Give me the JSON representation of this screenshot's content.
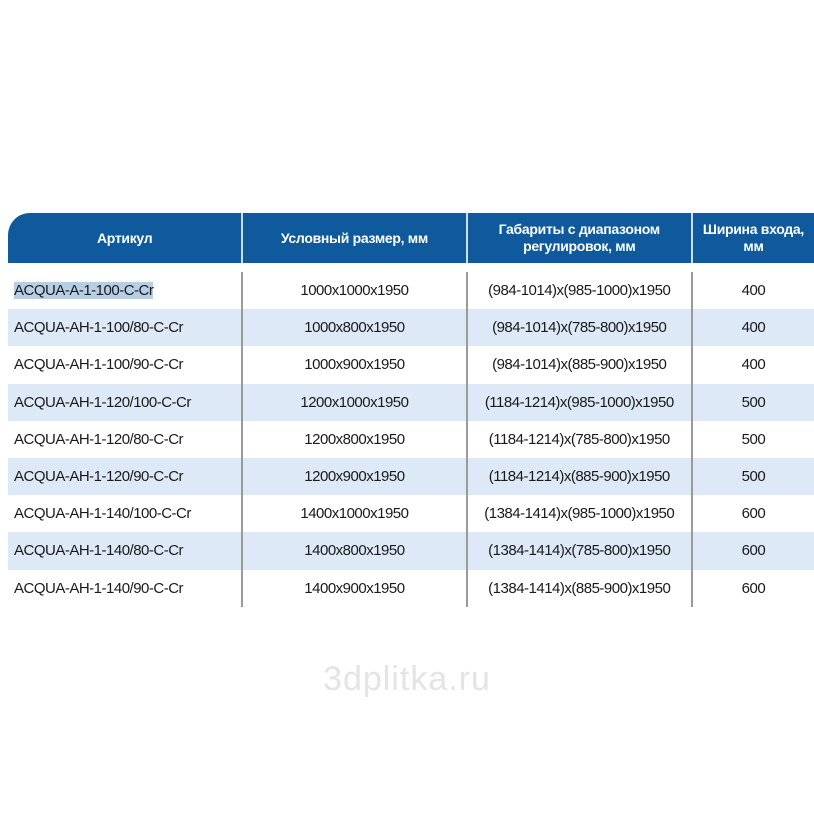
{
  "headers": [
    "Артикул",
    "Условный размер, мм",
    "Габариты с диапазоном регулировок, мм",
    "Ширина входа, мм"
  ],
  "rows": [
    [
      "ACQUA-A-1-100-C-Cr",
      "1000x1000x1950",
      "(984-1014)x(985-1000)x1950",
      "400"
    ],
    [
      "ACQUA-AH-1-100/80-C-Cr",
      "1000x800x1950",
      "(984-1014)x(785-800)x1950",
      "400"
    ],
    [
      "ACQUA-AH-1-100/90-C-Cr",
      "1000x900x1950",
      "(984-1014)x(885-900)x1950",
      "400"
    ],
    [
      "ACQUA-AH-1-120/100-C-Cr",
      "1200x1000x1950",
      "(1184-1214)x(985-1000)x1950",
      "500"
    ],
    [
      "ACQUA-AH-1-120/80-C-Cr",
      "1200x800x1950",
      "(1184-1214)x(785-800)x1950",
      "500"
    ],
    [
      "ACQUA-AH-1-120/90-C-Cr",
      "1200x900x1950",
      "(1184-1214)x(885-900)x1950",
      "500"
    ],
    [
      "ACQUA-AH-1-140/100-C-Cr",
      "1400x1000x1950",
      "(1384-1414)x(985-1000)x1950",
      "600"
    ],
    [
      "ACQUA-AH-1-140/80-C-Cr",
      "1400x800x1950",
      "(1384-1414)x(785-800)x1950",
      "600"
    ],
    [
      "ACQUA-AH-1-140/90-C-Cr",
      "1400x900x1950",
      "(1384-1414)x(885-900)x1950",
      "600"
    ]
  ],
  "watermark": "3dplitka.ru",
  "colors": {
    "header": "#0f5a9c",
    "alt_row": "#dde9f6",
    "selection": "#b7cfe6"
  }
}
